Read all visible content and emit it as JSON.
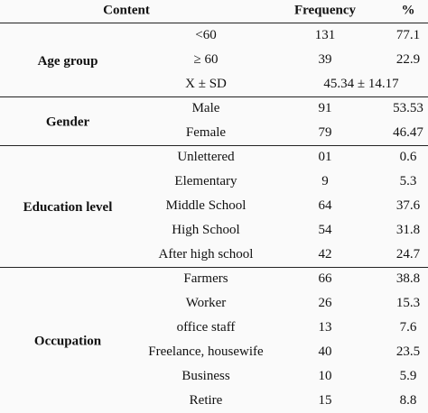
{
  "table": {
    "header": [
      "Content",
      "Frequency",
      "%"
    ],
    "groups": [
      {
        "label": "Age group",
        "rows": [
          [
            "<60",
            "131",
            "77.1"
          ],
          [
            "≥ 60",
            "39",
            "22.9"
          ],
          [
            "X ± SD",
            "45.34 ± 14.17"
          ]
        ]
      },
      {
        "label": "Gender",
        "rows": [
          [
            "Male",
            "91",
            "53.53"
          ],
          [
            "Female",
            "79",
            "46.47"
          ]
        ]
      },
      {
        "label": "Education level",
        "rows": [
          [
            "Unlettered",
            "01",
            "0.6"
          ],
          [
            "Elementary",
            "9",
            "5.3"
          ],
          [
            "Middle School",
            "64",
            "37.6"
          ],
          [
            "High School",
            "54",
            "31.8"
          ],
          [
            "After high school",
            "42",
            "24.7"
          ]
        ]
      },
      {
        "label": "Occupation",
        "rows": [
          [
            "Farmers",
            "66",
            "38.8"
          ],
          [
            "Worker",
            "26",
            "15.3"
          ],
          [
            "office staff",
            "13",
            "7.6"
          ],
          [
            "Freelance, housewife",
            "40",
            "23.5"
          ],
          [
            "Business",
            "10",
            "5.9"
          ],
          [
            "Retire",
            "15",
            "8.8"
          ]
        ]
      }
    ]
  }
}
